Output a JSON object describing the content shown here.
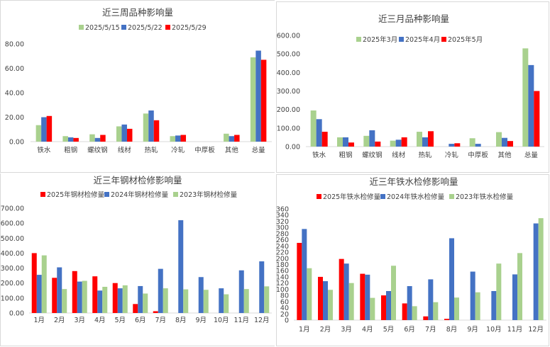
{
  "colors": {
    "green": "#a9d18e",
    "blue": "#4472c4",
    "red": "#ff0000"
  },
  "chart_data": [
    {
      "type": "bar",
      "title": "近三周品种影响量",
      "categories": [
        "铁水",
        "粗钢",
        "螺纹钢",
        "线材",
        "热轧",
        "冷轧",
        "中厚板",
        "其他",
        "总量"
      ],
      "series": [
        {
          "name": "2025/5/15",
          "color": "green",
          "values": [
            13.5,
            4.5,
            6,
            12.5,
            23,
            4.5,
            0,
            6.5,
            69
          ]
        },
        {
          "name": "2025/5/22",
          "color": "blue",
          "values": [
            20,
            3.5,
            3,
            14,
            25.5,
            5,
            0,
            4.5,
            74.5
          ]
        },
        {
          "name": "2025/5/29",
          "color": "red",
          "values": [
            21,
            3,
            5.5,
            10.5,
            17.5,
            5.5,
            0,
            5.5,
            67
          ]
        }
      ],
      "ylim": [
        0,
        80
      ],
      "yticks": [
        "0.00",
        "20.00",
        "40.00",
        "60.00",
        "80.00"
      ],
      "grid": false,
      "legend": "top"
    },
    {
      "type": "bar",
      "title": "近三月品种影响量",
      "categories": [
        "铁水",
        "粗钢",
        "螺纹钢",
        "线材",
        "热轧",
        "冷轧",
        "中厚板",
        "其他",
        "总量"
      ],
      "series": [
        {
          "name": "2025年3月",
          "color": "green",
          "values": [
            195,
            50,
            58,
            32,
            80,
            0,
            45,
            78,
            530
          ]
        },
        {
          "name": "2025年4月",
          "color": "blue",
          "values": [
            148,
            50,
            88,
            37,
            50,
            15,
            15,
            47,
            440
          ]
        },
        {
          "name": "2025年5月",
          "color": "red",
          "values": [
            80,
            22,
            27,
            50,
            83,
            18,
            0,
            30,
            300
          ]
        }
      ],
      "ylim": [
        0,
        600
      ],
      "yticks": [
        "0.00",
        "100.00",
        "200.00",
        "300.00",
        "400.00",
        "500.00",
        "600.00"
      ],
      "grid": false,
      "legend": "top"
    },
    {
      "type": "bar",
      "title": "近三年钢材检修影响量",
      "categories": [
        "1月",
        "2月",
        "3月",
        "4月",
        "5月",
        "6月",
        "7月",
        "8月",
        "9月",
        "10月",
        "11月",
        "12月"
      ],
      "series": [
        {
          "name": "2025年钢材检修量",
          "color": "red",
          "values": [
            400,
            235,
            280,
            245,
            200,
            60,
            12,
            null,
            null,
            null,
            null,
            null
          ]
        },
        {
          "name": "2024年钢材检修量",
          "color": "blue",
          "values": [
            255,
            305,
            210,
            150,
            165,
            180,
            295,
            620,
            240,
            165,
            285,
            345
          ]
        },
        {
          "name": "2023年钢材检修量",
          "color": "green",
          "values": [
            385,
            160,
            215,
            175,
            185,
            130,
            165,
            158,
            155,
            125,
            160,
            178
          ]
        }
      ],
      "ylim": [
        0,
        700
      ],
      "yticks": [
        "0.00",
        "100.00",
        "200.00",
        "300.00",
        "400.00",
        "500.00",
        "600.00",
        "700.00"
      ],
      "grid": false,
      "legend": "top"
    },
    {
      "type": "bar",
      "title": "近三年铁水检修影响量",
      "categories": [
        "1月",
        "2月",
        "3月",
        "4月",
        "5月",
        "6月",
        "7月",
        "8月",
        "9月",
        "10月",
        "11月",
        "12月"
      ],
      "series": [
        {
          "name": "2025年铁水检修量",
          "color": "red",
          "values": [
            250,
            140,
            198,
            150,
            80,
            54,
            12,
            4,
            null,
            null,
            null,
            null
          ]
        },
        {
          "name": "2024年铁水检修量",
          "color": "blue",
          "values": [
            295,
            126,
            183,
            147,
            94,
            110,
            132,
            265,
            157,
            94,
            148,
            313
          ]
        },
        {
          "name": "2023年铁水检修量",
          "color": "green",
          "values": [
            168,
            98,
            120,
            72,
            176,
            45,
            58,
            73,
            90,
            183,
            217,
            330
          ]
        }
      ],
      "ylim": [
        0,
        360
      ],
      "yticks": [
        "0",
        "20",
        "40",
        "60",
        "80",
        "100",
        "120",
        "140",
        "160",
        "180",
        "200",
        "220",
        "240",
        "260",
        "280",
        "300",
        "320",
        "340",
        "360"
      ],
      "grid": false,
      "legend": "top"
    }
  ]
}
